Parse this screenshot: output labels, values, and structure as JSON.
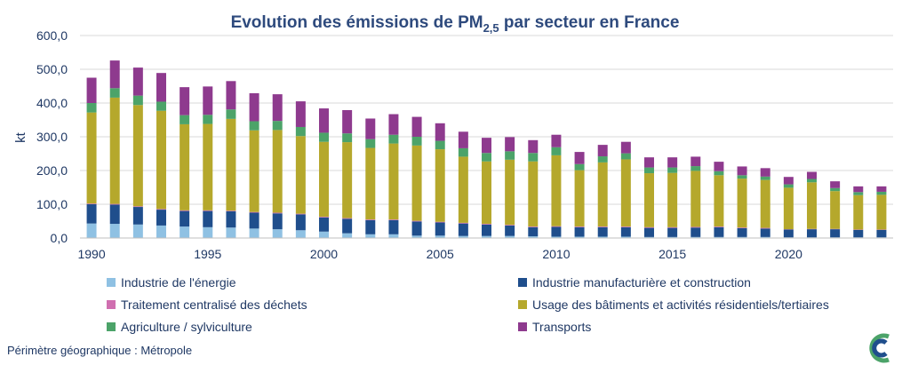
{
  "chart_data": {
    "type": "bar",
    "stacked": true,
    "title": "Evolution des émissions de PM",
    "title_subscript": "2,5",
    "title_suffix": " par secteur en France",
    "ylabel": "kt",
    "ylim": [
      0,
      600
    ],
    "yticks": [
      "0,0",
      "100,0",
      "200,0",
      "300,0",
      "400,0",
      "500,0",
      "600,0"
    ],
    "xticks": [
      "1990",
      "1995",
      "2000",
      "2005",
      "2010",
      "2015",
      "2020"
    ],
    "grid": true,
    "legend_position": "bottom",
    "categories": [
      "1990",
      "1991",
      "1992",
      "1993",
      "1994",
      "1995",
      "1996",
      "1997",
      "1998",
      "1999",
      "2000",
      "2001",
      "2002",
      "2003",
      "2004",
      "2005",
      "2006",
      "2007",
      "2008",
      "2009",
      "2010",
      "2011",
      "2012",
      "2013",
      "2014",
      "2015",
      "2016",
      "2017",
      "2018",
      "2019",
      "2020",
      "2021",
      "2022",
      "2023",
      "2024"
    ],
    "series": [
      {
        "name": "Industrie de l'énergie",
        "color": "#8fc1e3",
        "values": [
          43,
          42,
          40,
          37,
          34,
          32,
          31,
          28,
          26,
          23,
          19,
          14,
          11,
          11,
          7,
          7,
          6,
          6,
          6,
          5,
          4,
          4,
          4,
          4,
          3,
          3,
          3,
          3,
          3,
          3,
          2,
          2,
          2,
          2,
          2
        ]
      },
      {
        "name": "Industrie manufacturière et construction",
        "color": "#1f4e8c",
        "values": [
          57,
          57,
          52,
          47,
          46,
          48,
          48,
          47,
          47,
          47,
          42,
          43,
          42,
          42,
          42,
          39,
          37,
          34,
          31,
          27,
          29,
          28,
          28,
          28,
          27,
          27,
          28,
          29,
          26,
          25,
          23,
          24,
          24,
          22,
          22
        ]
      },
      {
        "name": "Traitement centralisé des déchets",
        "color": "#d06fb0",
        "values": [
          2,
          2,
          2,
          2,
          2,
          2,
          2,
          2,
          2,
          2,
          2,
          2,
          2,
          2,
          2,
          2,
          2,
          2,
          2,
          2,
          2,
          2,
          2,
          2,
          2,
          2,
          2,
          2,
          2,
          2,
          1,
          1,
          1,
          1,
          1
        ]
      },
      {
        "name": "Usage des bâtiments et activités résidentiels/tertiaires",
        "color": "#b5a82c",
        "values": [
          270,
          315,
          300,
          291,
          255,
          256,
          272,
          242,
          245,
          230,
          222,
          225,
          212,
          225,
          223,
          215,
          196,
          185,
          193,
          193,
          210,
          167,
          190,
          199,
          160,
          161,
          166,
          152,
          145,
          142,
          123,
          138,
          112,
          102,
          103
        ]
      },
      {
        "name": "Agriculture / sylviculture",
        "color": "#4ca369",
        "values": [
          28,
          28,
          28,
          27,
          27,
          27,
          28,
          27,
          27,
          27,
          27,
          26,
          26,
          26,
          26,
          25,
          25,
          25,
          25,
          25,
          24,
          18,
          18,
          18,
          17,
          16,
          14,
          12,
          10,
          10,
          10,
          10,
          9,
          9,
          9
        ]
      },
      {
        "name": "Transports",
        "color": "#8e3a8e",
        "values": [
          75,
          82,
          83,
          85,
          83,
          84,
          84,
          83,
          79,
          76,
          72,
          69,
          61,
          61,
          59,
          52,
          49,
          45,
          42,
          38,
          37,
          36,
          34,
          34,
          30,
          30,
          28,
          28,
          26,
          25,
          22,
          21,
          20,
          17,
          16
        ]
      }
    ]
  },
  "footnote": "Périmètre géographique : Métropole",
  "logo": "citepa-logo"
}
